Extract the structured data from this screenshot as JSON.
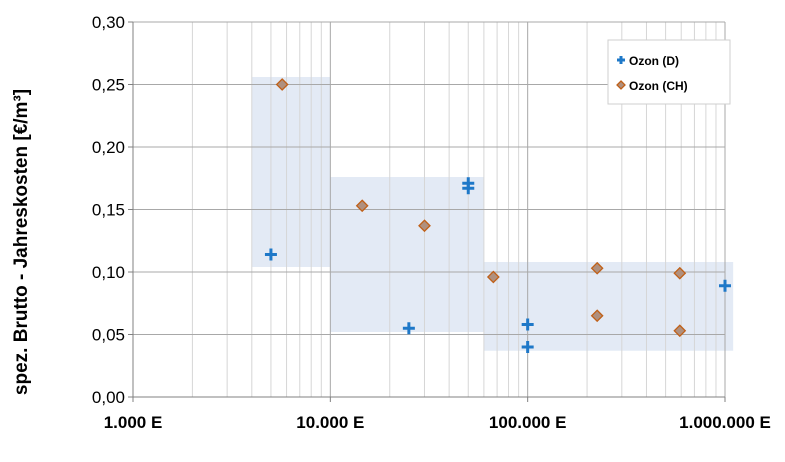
{
  "chart_data": {
    "type": "scatter",
    "title": "",
    "xlabel": "",
    "ylabel": "spez. Brutto - Jahreskosten [€/m³]",
    "x_scale": "log",
    "xlim": [
      1000,
      1000000
    ],
    "ylim": [
      0,
      0.3
    ],
    "grid": true,
    "legend_position": "top-right",
    "x_tick_labels": [
      "1.000 E",
      "10.000 E",
      "100.000 E",
      "1.000.000 E"
    ],
    "y_tick_labels": [
      "0,00",
      "0,05",
      "0,10",
      "0,15",
      "0,20",
      "0,25",
      "0,30"
    ],
    "colors": {
      "ozon_d": "#1e78c8",
      "ozon_ch_fill": "#b0907e",
      "ozon_ch_edge": "#c06018",
      "range_box": "#dce5f2"
    },
    "range_boxes": [
      {
        "x": [
          4000,
          10000
        ],
        "y": [
          0.104,
          0.256
        ]
      },
      {
        "x": [
          10000,
          60000
        ],
        "y": [
          0.052,
          0.176
        ]
      },
      {
        "x": [
          60000,
          1100000
        ],
        "y": [
          0.037,
          0.108
        ]
      }
    ],
    "series": [
      {
        "name": "Ozon (D)",
        "marker": "plus",
        "points": [
          {
            "x": 5000,
            "y": 0.114
          },
          {
            "x": 25000,
            "y": 0.055
          },
          {
            "x": 50000,
            "y": 0.167
          },
          {
            "x": 50000,
            "y": 0.171
          },
          {
            "x": 100000,
            "y": 0.058
          },
          {
            "x": 100000,
            "y": 0.04
          },
          {
            "x": 1000000,
            "y": 0.089
          }
        ]
      },
      {
        "name": "Ozon (CH)",
        "marker": "diamond",
        "points": [
          {
            "x": 5700,
            "y": 0.25
          },
          {
            "x": 14500,
            "y": 0.153
          },
          {
            "x": 30000,
            "y": 0.137
          },
          {
            "x": 67000,
            "y": 0.096
          },
          {
            "x": 225000,
            "y": 0.103
          },
          {
            "x": 225000,
            "y": 0.065
          },
          {
            "x": 590000,
            "y": 0.099
          },
          {
            "x": 590000,
            "y": 0.053
          }
        ]
      }
    ]
  }
}
